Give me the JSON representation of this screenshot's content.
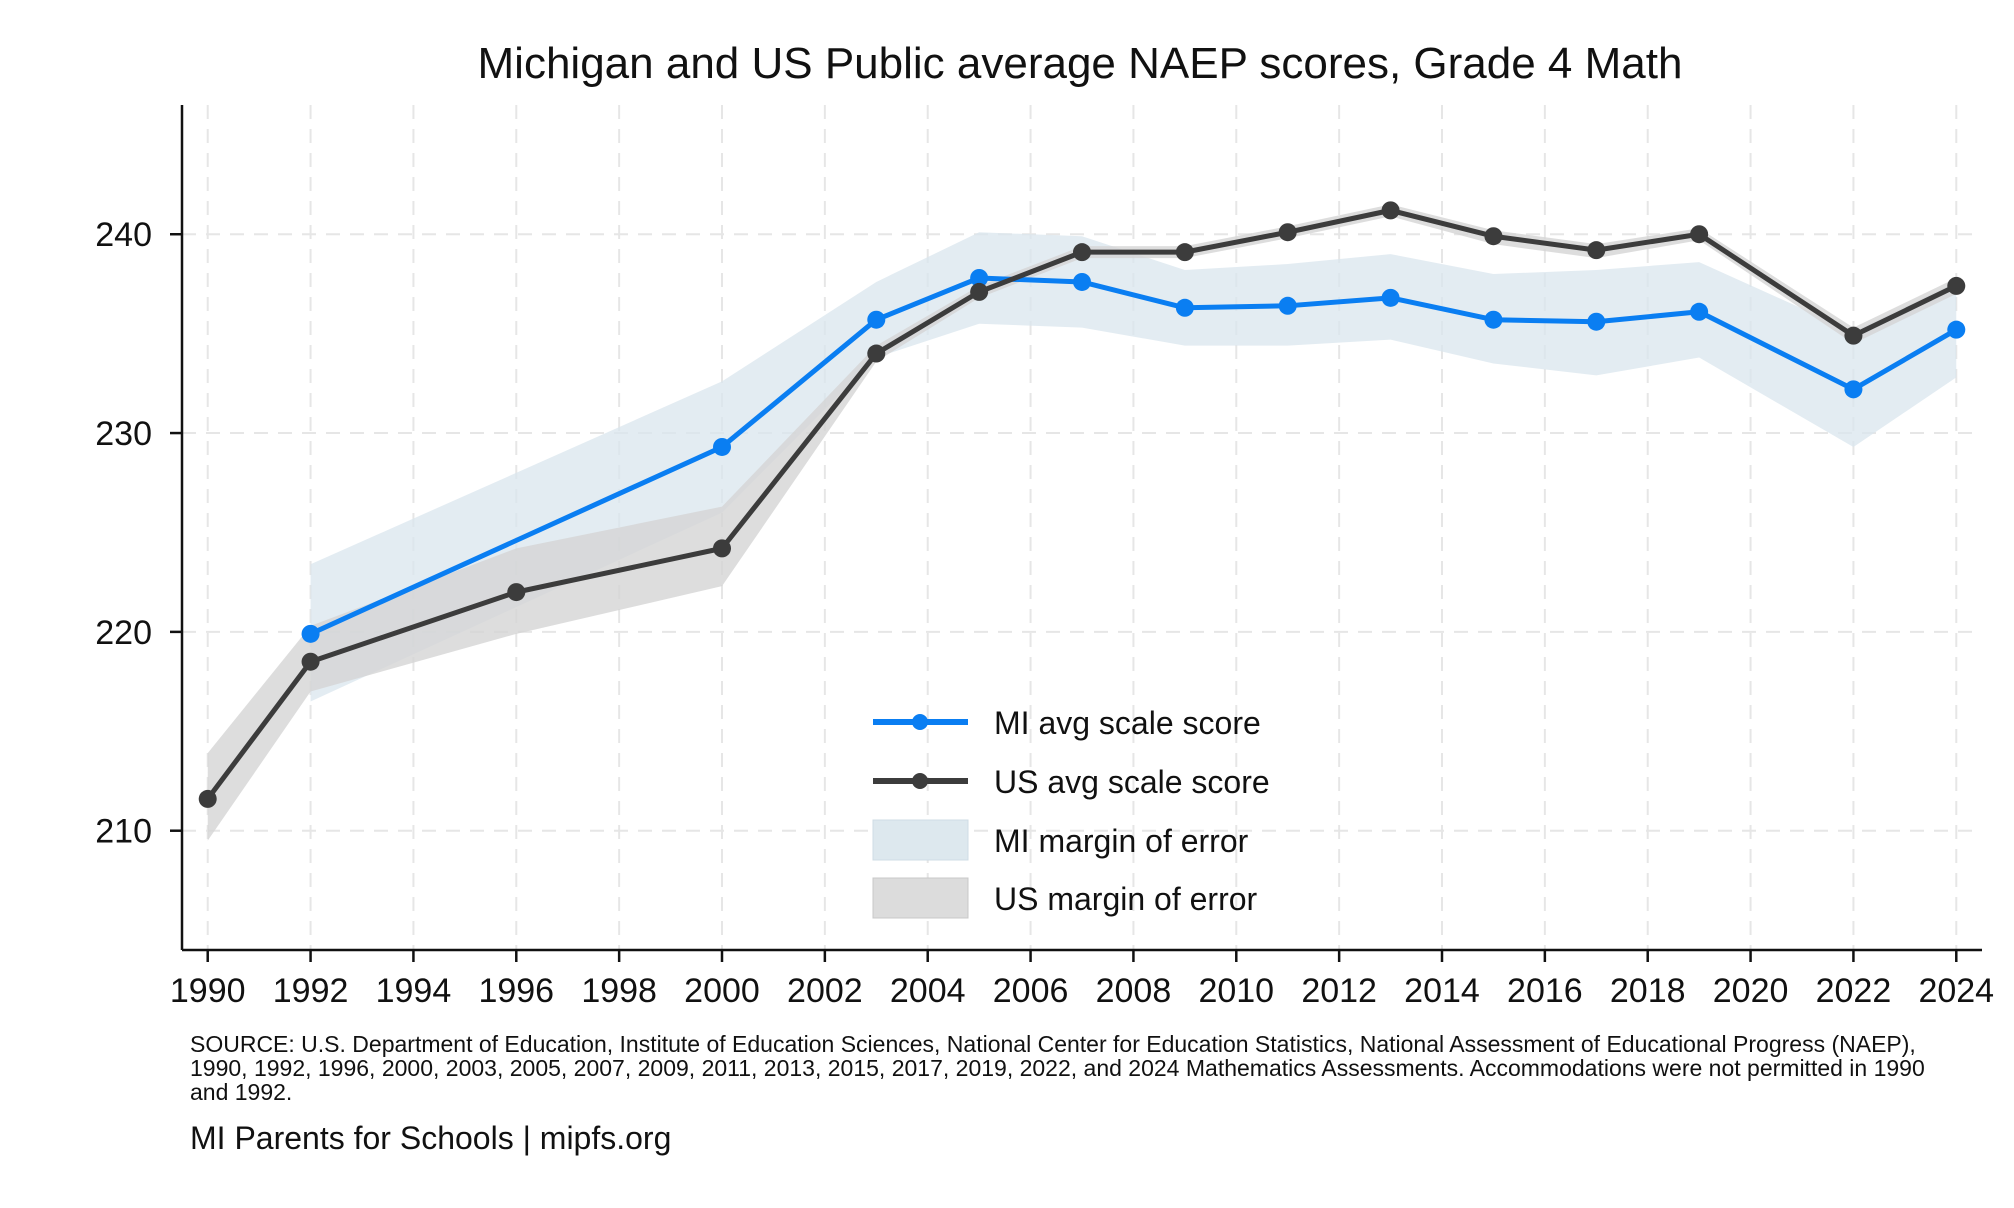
{
  "chart_data": {
    "type": "line",
    "title": "Michigan and US Public average NAEP scores, Grade 4 Math",
    "xlabel": "",
    "ylabel": "",
    "xlim": [
      1989.5,
      2024.5
    ],
    "ylim": [
      204,
      246.5
    ],
    "x_ticks": [
      1990,
      1992,
      1994,
      1996,
      1998,
      2000,
      2002,
      2004,
      2006,
      2008,
      2010,
      2012,
      2014,
      2016,
      2018,
      2020,
      2022,
      2024
    ],
    "y_ticks": [
      210,
      220,
      230,
      240
    ],
    "grid": true,
    "legend_position": "bottom-center",
    "series": [
      {
        "name": "MI avg scale score",
        "color": "#0a7ef2",
        "x": [
          1992,
          2000,
          2003,
          2005,
          2007,
          2009,
          2011,
          2013,
          2015,
          2017,
          2019,
          2022,
          2024
        ],
        "values": [
          219.9,
          229.3,
          235.7,
          237.8,
          237.6,
          236.3,
          236.4,
          236.8,
          235.7,
          235.6,
          236.1,
          232.2,
          235.2
        ]
      },
      {
        "name": "US avg scale score",
        "color": "#3c3c3c",
        "x": [
          1990,
          1992,
          1996,
          2000,
          2003,
          2005,
          2007,
          2009,
          2011,
          2013,
          2015,
          2017,
          2019,
          2022,
          2024
        ],
        "values": [
          211.6,
          218.5,
          222.0,
          224.2,
          234.0,
          237.1,
          239.1,
          239.1,
          240.1,
          241.2,
          239.9,
          239.2,
          240.0,
          234.9,
          237.4
        ]
      }
    ],
    "bands": [
      {
        "name": "MI margin of error",
        "color": "#d9e6ee",
        "x": [
          1992,
          2000,
          2003,
          2005,
          2007,
          2009,
          2011,
          2013,
          2015,
          2017,
          2019,
          2022,
          2024
        ],
        "lower": [
          216.5,
          226.0,
          233.8,
          235.5,
          235.3,
          234.4,
          234.4,
          234.7,
          233.5,
          232.9,
          233.8,
          229.3,
          232.8
        ],
        "upper": [
          223.4,
          232.6,
          237.6,
          240.1,
          239.9,
          238.2,
          238.5,
          239.0,
          238.0,
          238.2,
          238.6,
          235.1,
          237.6
        ]
      },
      {
        "name": "US margin of error",
        "color": "#d4d4d4",
        "x": [
          1990,
          1992,
          1996,
          2000,
          2003,
          2005,
          2007,
          2009,
          2011,
          2013,
          2015,
          2017,
          2019,
          2022,
          2024
        ],
        "lower": [
          209.5,
          217.0,
          219.9,
          222.3,
          233.6,
          236.8,
          238.8,
          238.8,
          239.8,
          240.9,
          239.5,
          238.8,
          239.7,
          234.5,
          237.0
        ],
        "upper": [
          213.9,
          220.3,
          224.2,
          226.3,
          234.4,
          237.4,
          239.4,
          239.4,
          240.4,
          241.5,
          240.2,
          239.5,
          240.3,
          235.3,
          237.8
        ]
      }
    ]
  },
  "legend": {
    "mi_line": "MI avg scale score",
    "us_line": "US avg scale score",
    "mi_band": "MI margin of error",
    "us_band": "US margin of error"
  },
  "footer": {
    "source": "SOURCE: U.S. Department of Education, Institute of Education Sciences, National Center for Education Statistics, National Assessment of Educational Progress (NAEP), 1990, 1992, 1996, 2000, 2003, 2005, 2007, 2009, 2011, 2013, 2015, 2017, 2019, 2022, and 2024 Mathematics Assessments. Accommodations were not permitted in 1990 and 1992.",
    "credit": "MI Parents for Schools | mipfs.org"
  }
}
